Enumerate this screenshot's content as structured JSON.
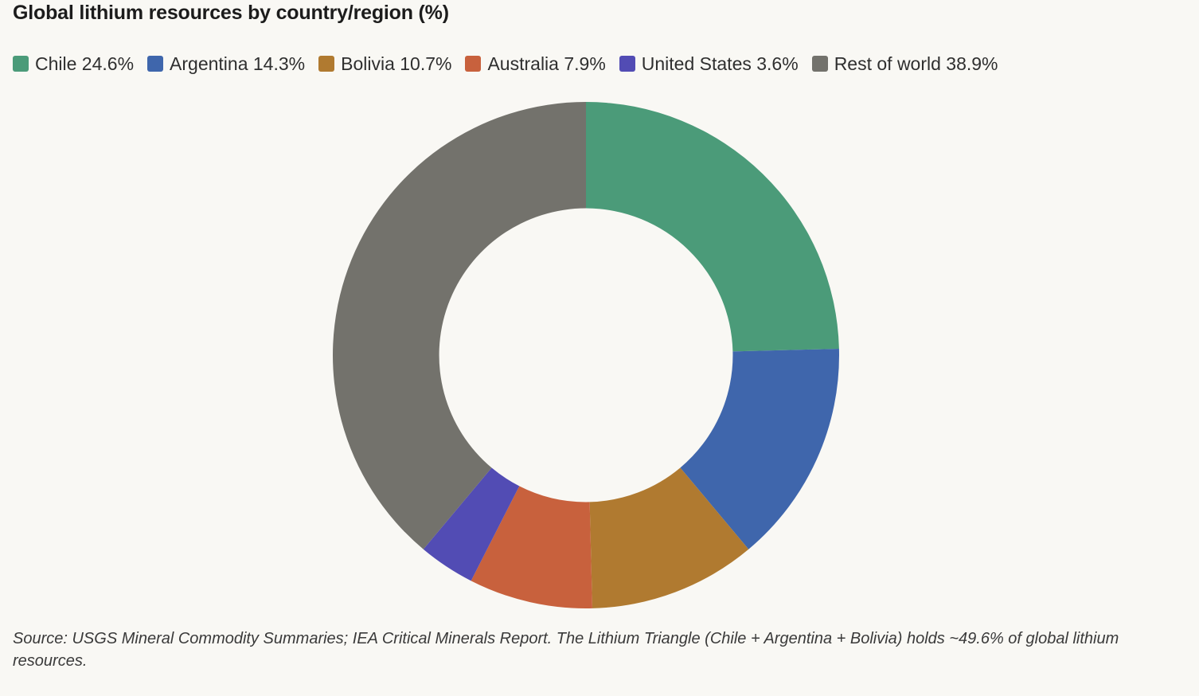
{
  "chart_data": {
    "type": "pie",
    "title": "Global lithium resources by country/region (%)",
    "legend_position": "top-left",
    "inner_radius_ratio": 0.58,
    "series": [
      {
        "name": "Chile",
        "value": 24.6,
        "label": "Chile 24.6%",
        "color": "#4b9b79"
      },
      {
        "name": "Argentina",
        "value": 14.3,
        "label": "Argentina 14.3%",
        "color": "#3f66ac"
      },
      {
        "name": "Bolivia",
        "value": 10.7,
        "label": "Bolivia 10.7%",
        "color": "#b07a30"
      },
      {
        "name": "Australia",
        "value": 7.9,
        "label": "Australia 7.9%",
        "color": "#c8613d"
      },
      {
        "name": "United States",
        "value": 3.6,
        "label": "United States 3.6%",
        "color": "#524cb4"
      },
      {
        "name": "Rest of world",
        "value": 38.9,
        "label": "Rest of world 38.9%",
        "color": "#73726c"
      }
    ]
  },
  "footer": {
    "source": "Source: USGS Mineral Commodity Summaries; IEA Critical Minerals Report. The Lithium Triangle (Chile + Argentina + Bolivia) holds ~49.6% of global lithium resources."
  },
  "colors": {
    "background": "#f9f8f4",
    "text": "#1c1c1c"
  }
}
